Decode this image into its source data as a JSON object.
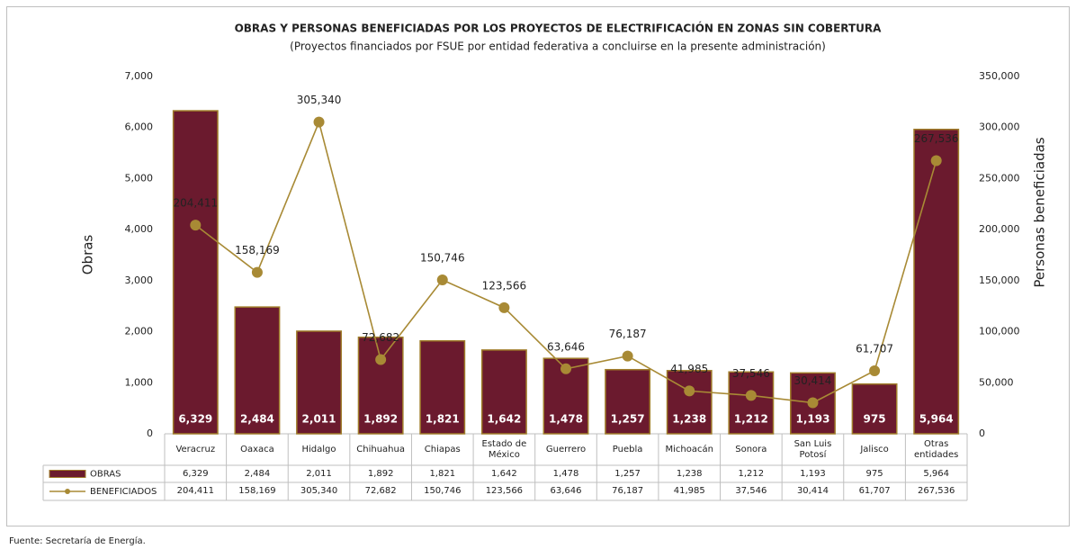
{
  "chart_data": {
    "type": "bar-line",
    "title": "OBRAS Y PERSONAS BENEFICIADAS POR LOS PROYECTOS DE ELECTRIFICACIÓN EN ZONAS SIN COBERTURA",
    "subtitle": "(Proyectos financiados por FSUE por entidad federativa a concluirse en la presente administración)",
    "ylabel": "Obras",
    "y2label": "Personas beneficiadas",
    "note": "Fuente: Secretaría de Energía.",
    "categories": [
      "Veracruz",
      "Oaxaca",
      "Hidalgo",
      "Chihuahua",
      "Chiapas",
      "Estado de México",
      "Guerrero",
      "Puebla",
      "Michoacán",
      "Sonora",
      "San Luis Potosí",
      "Jalisco",
      "Otras entidades"
    ],
    "series": [
      {
        "name": "OBRAS",
        "type": "bar",
        "color": "#6b1a2e",
        "edge": "#a07d2a",
        "values": [
          6329,
          2484,
          2011,
          1892,
          1821,
          1642,
          1478,
          1257,
          1238,
          1212,
          1193,
          975,
          5964
        ],
        "value_labels": [
          "6,329",
          "2,484",
          "2,011",
          "1,892",
          "1,821",
          "1,642",
          "1,478",
          "1,257",
          "1,238",
          "1,212",
          "1,193",
          "975",
          "5,964"
        ]
      },
      {
        "name": "BENEFICIADOS",
        "type": "line",
        "axis": "y2",
        "color": "#a88a35",
        "values": [
          204411,
          158169,
          305340,
          72682,
          150746,
          123566,
          63646,
          76187,
          41985,
          37546,
          30414,
          61707,
          267536
        ],
        "value_labels": [
          "204,411",
          "158,169",
          "305,340",
          "72,682",
          "150,746",
          "123,566",
          "63,646",
          "76,187",
          "41,985",
          "37,546",
          "30,414",
          "61,707",
          "267,536"
        ]
      }
    ],
    "ylim": [
      0,
      7000
    ],
    "yticks": [
      0,
      {
        "value": 1000,
        "label": "1,000"
      },
      {
        "value": 2000,
        "label": "2,000"
      },
      {
        "value": 3000,
        "label": "3,000"
      },
      {
        "value": 4000,
        "label": "4,000"
      },
      {
        "value": 5000,
        "label": "5,000"
      },
      {
        "value": 6000,
        "label": "6,000"
      },
      {
        "value": 7000,
        "label": "7,000"
      }
    ],
    "y2lim": [
      0,
      350000
    ],
    "y2ticks": [
      0,
      {
        "value": 50000,
        "label": "50,000"
      },
      {
        "value": 100000,
        "label": "100,000"
      },
      {
        "value": 150000,
        "label": "150,000"
      },
      {
        "value": 200000,
        "label": "200,000"
      },
      {
        "value": 250000,
        "label": "250,000"
      },
      {
        "value": 300000,
        "label": "300,000"
      },
      {
        "value": 350000,
        "label": "350,000"
      }
    ]
  }
}
